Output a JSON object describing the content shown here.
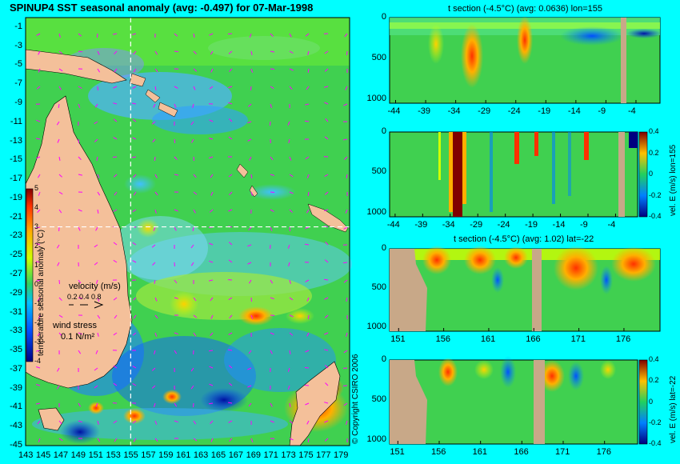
{
  "chart_data": [
    {
      "type": "heatmap",
      "title": "SPINUP4 SST seasonal anomaly (avg: -0.497) for 07-Mar-1998",
      "x_ticks": [
        "143",
        "145",
        "147",
        "149",
        "151",
        "153",
        "155",
        "157",
        "159",
        "161",
        "163",
        "165",
        "167",
        "169",
        "171",
        "173",
        "175",
        "177",
        "179"
      ],
      "y_ticks": [
        "-1",
        "-3",
        "-5",
        "-7",
        "-9",
        "-11",
        "-13",
        "-15",
        "-17",
        "-19",
        "-21",
        "-23",
        "-25",
        "-27",
        "-29",
        "-31",
        "-33",
        "-35",
        "-37",
        "-39",
        "-41",
        "-43",
        "-45"
      ],
      "xlim": [
        143,
        180
      ],
      "ylim": [
        -45,
        0
      ],
      "crosshair": {
        "lon": 155,
        "lat": -22
      },
      "colorbar": {
        "label": "temperature seasonal anomaly (°C)",
        "ticks": [
          "5",
          "4",
          "3",
          "2",
          "1",
          "0",
          "-1",
          "-2",
          "-3",
          "-4"
        ],
        "range": [
          -4,
          5
        ]
      },
      "legend": {
        "velocity_label": "velocity (m/s)",
        "velocity_scale": "0.2 0.4 0.8",
        "wind_label": "wind stress",
        "wind_scale": "0.1 N/m²"
      },
      "copyright": "© Copyright CSIRO 2006"
    },
    {
      "type": "heatmap",
      "title": "t section (-4.5°C) (avg: 0.0636) lon=155",
      "x_ticks": [
        "-44",
        "-39",
        "-34",
        "-29",
        "-24",
        "-19",
        "-14",
        "-9",
        "-4"
      ],
      "y_ticks": [
        "0",
        "500",
        "1000"
      ],
      "xlim": [
        -45,
        0
      ],
      "ylim": [
        1050,
        0
      ]
    },
    {
      "type": "heatmap",
      "title": "",
      "x_ticks": [
        "-44",
        "-39",
        "-34",
        "-29",
        "-24",
        "-19",
        "-14",
        "-9",
        "-4"
      ],
      "y_ticks": [
        "0",
        "500",
        "1000"
      ],
      "xlim": [
        -45,
        0
      ],
      "ylim": [
        1050,
        0
      ],
      "colorbar": {
        "label": "vel. E (m/s) lon=155",
        "ticks": [
          "0.4",
          "0.2",
          "0",
          "-0.2",
          "-0.4"
        ],
        "range": [
          -0.4,
          0.4
        ]
      }
    },
    {
      "type": "heatmap",
      "title": "t section (-4.5°C) (avg: 1.02) lat=-22",
      "x_ticks": [
        "151",
        "156",
        "161",
        "166",
        "171",
        "176"
      ],
      "y_ticks": [
        "0",
        "500",
        "1000"
      ],
      "xlim": [
        150,
        180
      ],
      "ylim": [
        1050,
        0
      ]
    },
    {
      "type": "heatmap",
      "title": "",
      "x_ticks": [
        "151",
        "156",
        "161",
        "166",
        "171",
        "176"
      ],
      "y_ticks": [
        "0",
        "500",
        "1000"
      ],
      "xlim": [
        150,
        180
      ],
      "ylim": [
        1050,
        0
      ],
      "colorbar": {
        "label": "vel. E (m/s) lat=-22",
        "ticks": [
          "0.4",
          "0.2",
          "0",
          "-0.2",
          "-0.4"
        ],
        "range": [
          -0.4,
          0.4
        ]
      }
    }
  ],
  "colors": {
    "background": "#00ffff",
    "land": "#f4c09a",
    "section_land": "#c8a888",
    "crosshair": "#ffffff",
    "vectors": "#ff00ff"
  }
}
